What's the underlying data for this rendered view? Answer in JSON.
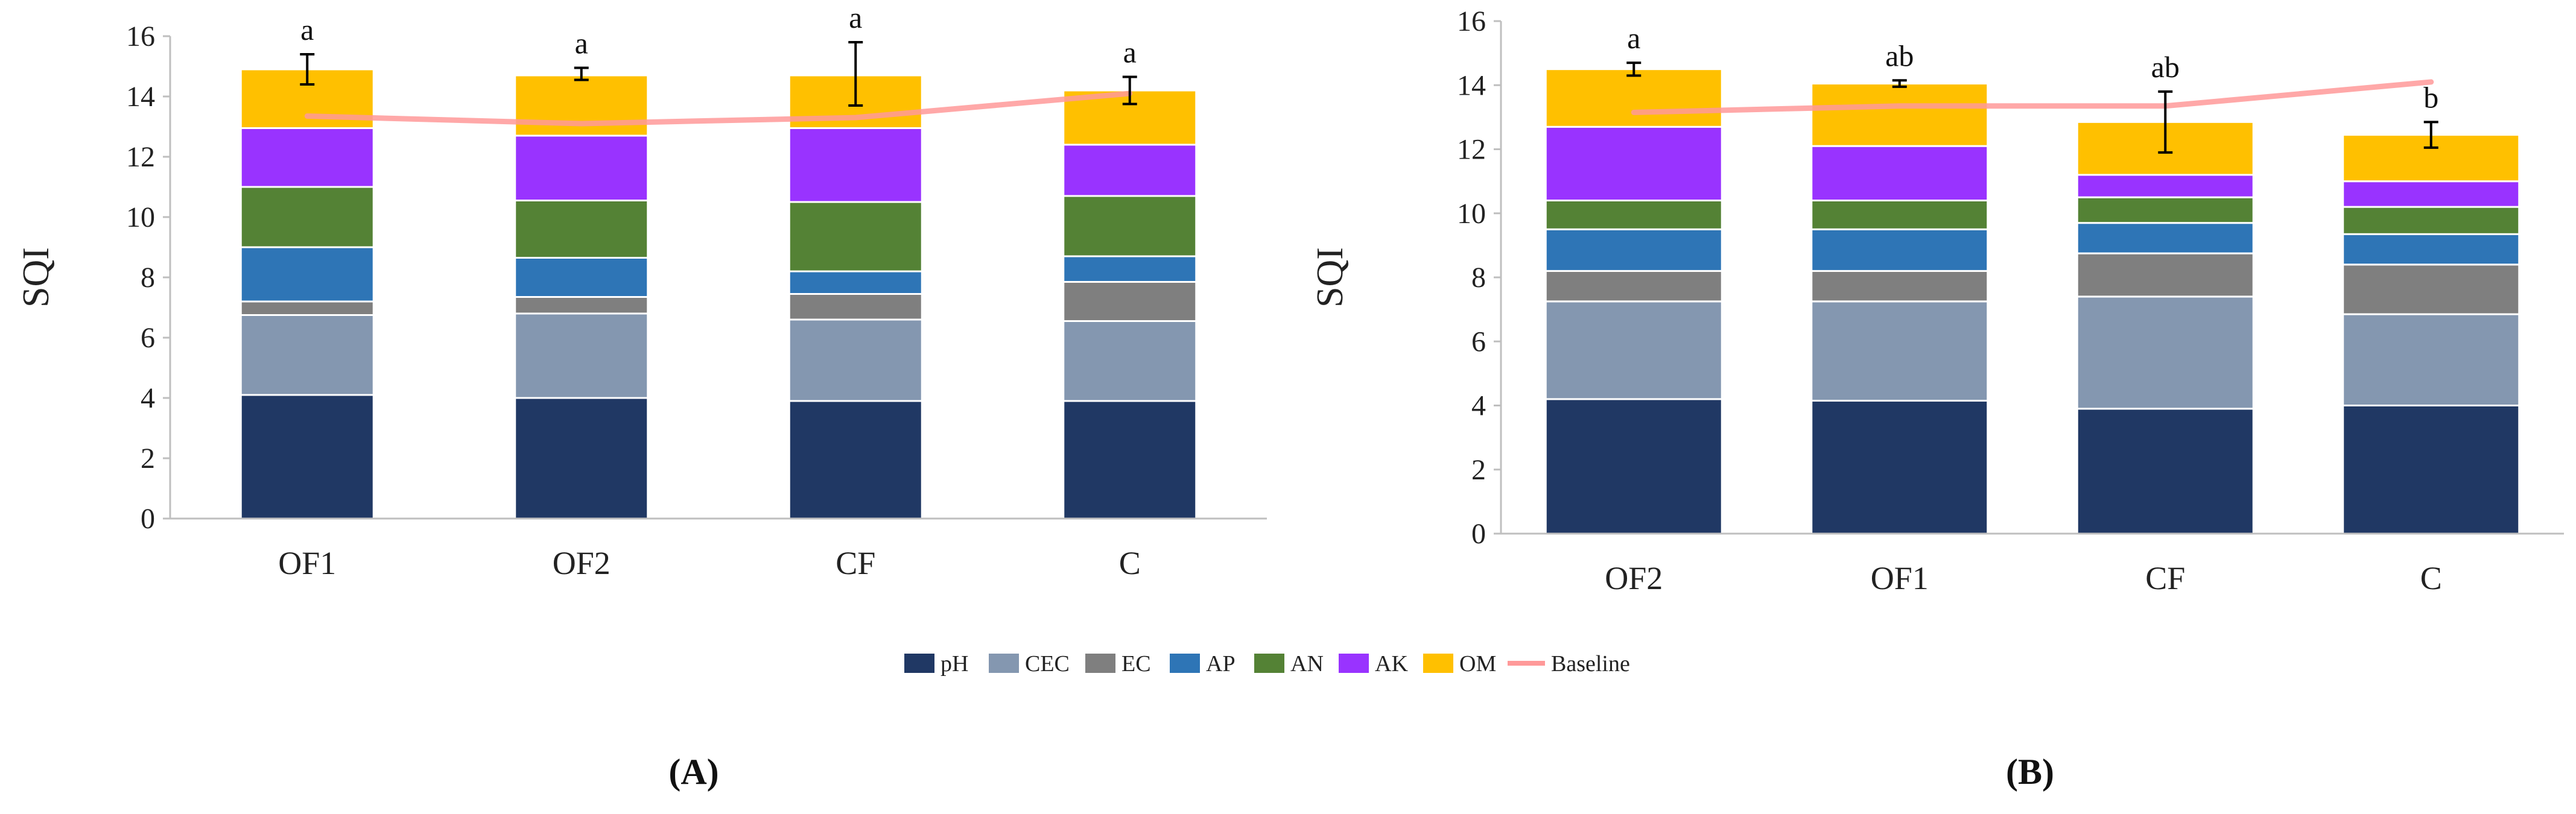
{
  "chart_data": [
    {
      "type": "bar",
      "stacked": true,
      "panel_label": "(A)",
      "ylabel": "SQI",
      "ylim": [
        0,
        16
      ],
      "yticks": [
        0,
        2,
        4,
        6,
        8,
        10,
        12,
        14,
        16
      ],
      "grid": false,
      "categories": [
        "OF1",
        "OF2",
        "CF",
        "C"
      ],
      "series": [
        {
          "name": "pH",
          "color": "#203864",
          "values": [
            4.1,
            4.0,
            3.9,
            3.9
          ]
        },
        {
          "name": "CEC",
          "color": "#8497B0",
          "values": [
            2.65,
            2.8,
            2.7,
            2.65
          ]
        },
        {
          "name": "EC",
          "color": "#7F7F7F",
          "values": [
            0.45,
            0.55,
            0.85,
            1.3
          ]
        },
        {
          "name": "AP",
          "color": "#2E75B6",
          "values": [
            1.8,
            1.3,
            0.75,
            0.85
          ]
        },
        {
          "name": "AN",
          "color": "#548235",
          "values": [
            2.0,
            1.9,
            2.3,
            2.0
          ]
        },
        {
          "name": "AK",
          "color": "#9933FF",
          "values": [
            1.95,
            2.15,
            2.45,
            1.7
          ]
        },
        {
          "name": "OM",
          "color": "#FFC000",
          "values": [
            1.95,
            2.0,
            1.75,
            1.8
          ]
        }
      ],
      "totals": [
        14.9,
        14.75,
        14.75,
        14.2
      ],
      "error_bars": [
        0.5,
        0.2,
        1.05,
        0.45
      ],
      "significance": [
        "a",
        "a",
        "a",
        "a"
      ],
      "baseline": {
        "name": "Baseline",
        "color": "#FF9999",
        "values": [
          13.35,
          13.1,
          13.3,
          14.1
        ]
      }
    },
    {
      "type": "bar",
      "stacked": true,
      "panel_label": "(B)",
      "ylabel": "SQI",
      "ylim": [
        0,
        16
      ],
      "yticks": [
        0,
        2,
        4,
        6,
        8,
        10,
        12,
        14,
        16
      ],
      "grid": false,
      "categories": [
        "OF2",
        "OF1",
        "CF",
        "C"
      ],
      "series": [
        {
          "name": "pH",
          "color": "#203864",
          "values": [
            4.2,
            4.15,
            3.9,
            4.0
          ]
        },
        {
          "name": "CEC",
          "color": "#8497B0",
          "values": [
            3.05,
            3.1,
            3.5,
            2.85
          ]
        },
        {
          "name": "EC",
          "color": "#7F7F7F",
          "values": [
            0.95,
            0.95,
            1.35,
            1.55
          ]
        },
        {
          "name": "AP",
          "color": "#2E75B6",
          "values": [
            1.3,
            1.3,
            0.95,
            0.95
          ]
        },
        {
          "name": "AN",
          "color": "#548235",
          "values": [
            0.9,
            0.9,
            0.8,
            0.85
          ]
        },
        {
          "name": "AK",
          "color": "#9933FF",
          "values": [
            2.3,
            1.7,
            0.7,
            0.8
          ]
        },
        {
          "name": "OM",
          "color": "#FFC000",
          "values": [
            1.8,
            1.95,
            1.65,
            1.45
          ]
        }
      ],
      "totals": [
        14.5,
        14.05,
        12.85,
        12.45
      ],
      "error_bars": [
        0.2,
        0.1,
        0.95,
        0.4
      ],
      "significance": [
        "a",
        "ab",
        "ab",
        "b"
      ],
      "baseline": {
        "name": "Baseline",
        "color": "#FF9999",
        "values": [
          13.15,
          13.35,
          13.35,
          14.1
        ]
      }
    }
  ],
  "legend": {
    "placement": "bottom-center",
    "items": [
      {
        "label": "pH",
        "color": "#203864",
        "kind": "box"
      },
      {
        "label": "CEC",
        "color": "#8497B0",
        "kind": "box"
      },
      {
        "label": "EC",
        "color": "#7F7F7F",
        "kind": "box"
      },
      {
        "label": "AP",
        "color": "#2E75B6",
        "kind": "box"
      },
      {
        "label": "AN",
        "color": "#548235",
        "kind": "box"
      },
      {
        "label": "AK",
        "color": "#9933FF",
        "kind": "box"
      },
      {
        "label": "OM",
        "color": "#FFC000",
        "kind": "box"
      },
      {
        "label": "Baseline",
        "color": "#FF9999",
        "kind": "line"
      }
    ]
  }
}
